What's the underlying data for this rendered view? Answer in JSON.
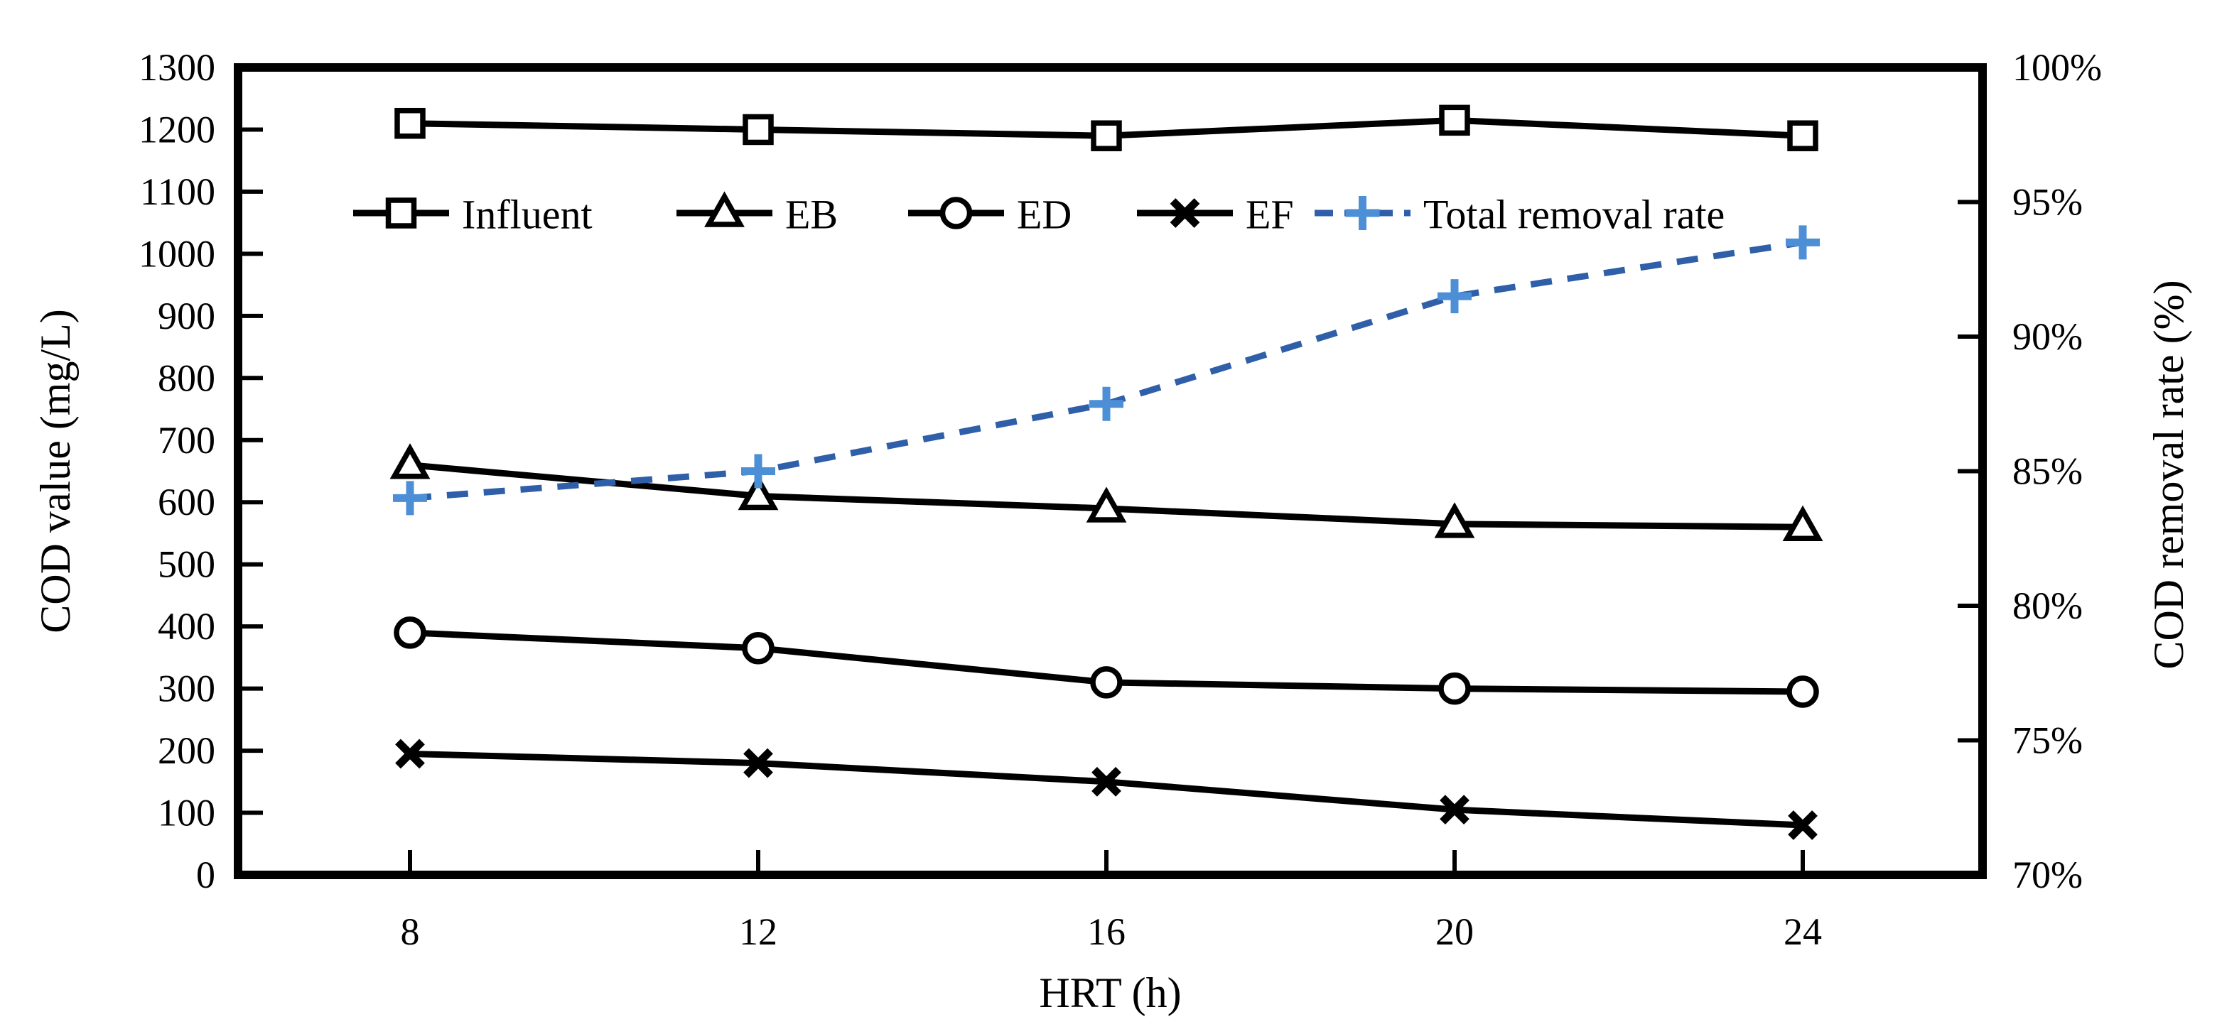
{
  "figure": {
    "background": "#ffffff",
    "description": "Dual-axis line chart of COD values and COD removal rate versus HRT"
  },
  "chart_data": {
    "type": "line",
    "x": [
      8,
      12,
      16,
      20,
      24
    ],
    "x_tick_labels": [
      "8",
      "12",
      "16",
      "20",
      "24"
    ],
    "xlabel": "HRT (h)",
    "left_axis": {
      "label": "COD value (mg/L)",
      "min": 0,
      "max": 1300,
      "tick_step": 100,
      "tick_values": [
        0,
        100,
        200,
        300,
        400,
        500,
        600,
        700,
        800,
        900,
        1000,
        1100,
        1200,
        1300
      ],
      "tick_labels": [
        "0",
        "100",
        "200",
        "300",
        "400",
        "500",
        "600",
        "700",
        "800",
        "900",
        "1000",
        "1100",
        "1200",
        "1300"
      ]
    },
    "right_axis": {
      "label": "COD removal rate (%)",
      "min": 70,
      "max": 100,
      "tick_step": 5,
      "tick_values": [
        70,
        75,
        80,
        85,
        90,
        95,
        100
      ],
      "tick_labels": [
        "70%",
        "75%",
        "80%",
        "85%",
        "90%",
        "95%",
        "100%"
      ]
    },
    "series": [
      {
        "name": "Influent",
        "axis": "left",
        "marker": "square",
        "line_style": "solid",
        "line_color": "#000000",
        "marker_color": "#000000",
        "values": [
          1210,
          1200,
          1190,
          1215,
          1190
        ]
      },
      {
        "name": "EB",
        "axis": "left",
        "marker": "triangle",
        "line_style": "solid",
        "line_color": "#000000",
        "marker_color": "#000000",
        "values": [
          660,
          610,
          590,
          565,
          560
        ]
      },
      {
        "name": "ED",
        "axis": "left",
        "marker": "circle",
        "line_style": "solid",
        "line_color": "#000000",
        "marker_color": "#000000",
        "values": [
          390,
          365,
          310,
          300,
          295
        ]
      },
      {
        "name": "EF",
        "axis": "left",
        "marker": "x",
        "line_style": "solid",
        "line_color": "#000000",
        "marker_color": "#000000",
        "values": [
          195,
          180,
          150,
          105,
          80
        ]
      },
      {
        "name": "Total removal rate",
        "axis": "right",
        "marker": "plus",
        "line_style": "dashed",
        "line_color": "#2F5FA8",
        "marker_color": "#4D8FD6",
        "values": [
          84,
          85,
          87.5,
          91.5,
          93.5
        ]
      }
    ],
    "legend": {
      "position": "inside-top",
      "items": [
        "Influent",
        "EB",
        "ED",
        "EF",
        "Total removal rate"
      ]
    },
    "grid": false,
    "colors": {
      "frame": "#000000",
      "dash_blue": "#2F5FA8",
      "plus_blue": "#4D8FD6"
    }
  }
}
